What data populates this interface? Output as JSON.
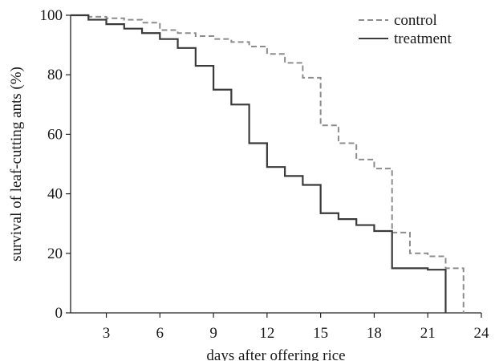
{
  "chart_data": {
    "type": "line",
    "xlabel": "days after offering rice",
    "ylabel": "survival of leaf-cutting ants (%)",
    "xlim": [
      1,
      24
    ],
    "ylim": [
      0,
      100
    ],
    "xticks": [
      3,
      6,
      9,
      12,
      15,
      18,
      21,
      24
    ],
    "yticks": [
      0,
      20,
      40,
      60,
      80,
      100
    ],
    "x_tick_labels": [
      "3",
      "6",
      "9",
      "12",
      "15",
      "18",
      "21",
      "24"
    ],
    "y_tick_labels": [
      "0",
      "20",
      "40",
      "60",
      "80",
      "100"
    ],
    "step": "post",
    "grid": false,
    "legend_position": "top-right",
    "series": [
      {
        "name": "control",
        "style": "dashed",
        "color": "#8c8c8c",
        "x": [
          1,
          2,
          3,
          4,
          5,
          6,
          7,
          8,
          9,
          10,
          11,
          12,
          13,
          14,
          15,
          16,
          17,
          18,
          19,
          20,
          21,
          22,
          23
        ],
        "y": [
          100,
          99.5,
          99,
          98.5,
          97.5,
          95,
          94,
          93,
          92,
          91,
          89.5,
          87,
          84,
          79,
          63,
          57,
          51.5,
          48.5,
          27,
          20,
          19,
          15,
          0
        ]
      },
      {
        "name": "treatment",
        "style": "solid",
        "color": "#3a3a3a",
        "x": [
          1,
          2,
          3,
          4,
          5,
          6,
          7,
          8,
          9,
          10,
          11,
          12,
          13,
          14,
          15,
          16,
          17,
          18,
          19,
          20,
          21,
          22
        ],
        "y": [
          100,
          98.5,
          97,
          95.5,
          94,
          92,
          89,
          83,
          75,
          70,
          57,
          49,
          46,
          43,
          33.5,
          31.5,
          29.5,
          27.5,
          15,
          15,
          14.5,
          0
        ]
      }
    ]
  }
}
